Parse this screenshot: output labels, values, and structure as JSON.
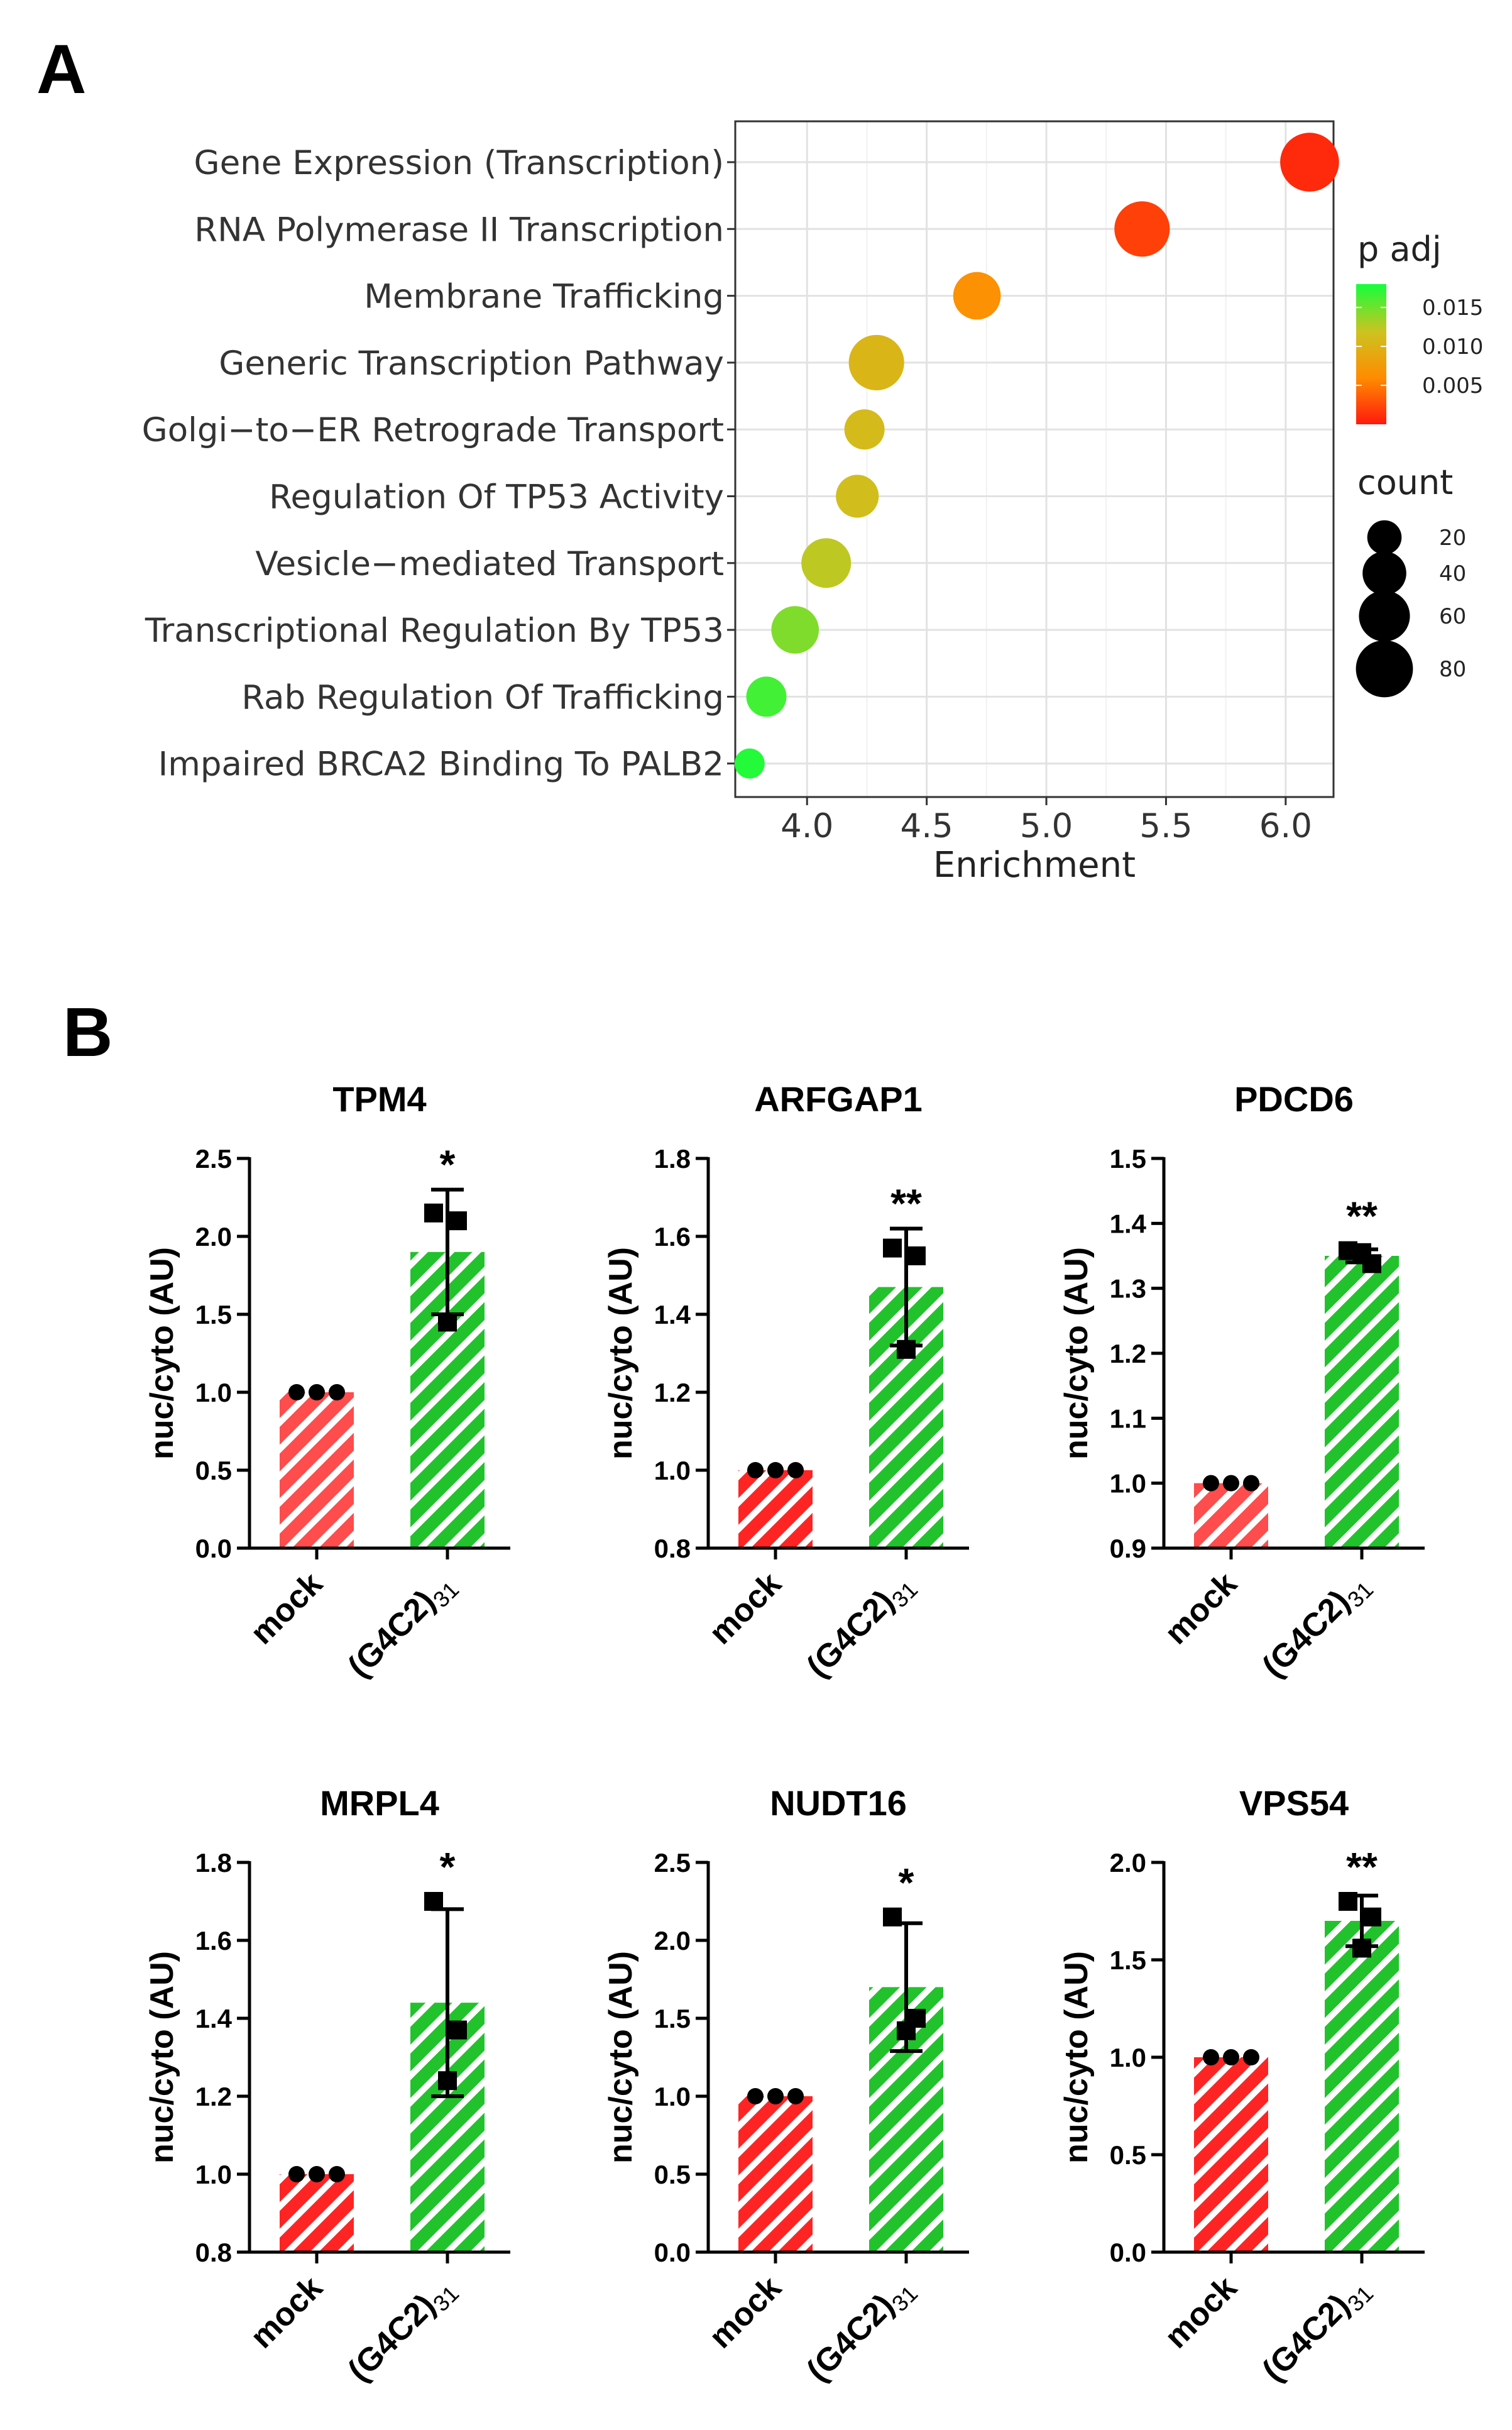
{
  "panel_a_label": "A",
  "panel_b_label": "B",
  "chart_data": [
    {
      "type": "scatter",
      "chart": "dotplot",
      "xlabel": "Enrichment",
      "xlim": [
        3.7,
        6.2
      ],
      "xticks": [
        4.0,
        4.5,
        5.0,
        5.5,
        6.0
      ],
      "xtick_labels": [
        "4.0",
        "4.5",
        "5.0",
        "5.5",
        "6.0"
      ],
      "grid": true,
      "terms": [
        "Gene Expression (Transcription)",
        "RNA Polymerase II Transcription",
        "Membrane Trafficking",
        "Generic Transcription Pathway",
        "Golgi−to−ER Retrograde Transport",
        "Regulation Of TP53 Activity",
        "Vesicle−mediated Transport",
        "Transcriptional Regulation By TP53",
        "Rab Regulation Of Trafficking",
        "Impaired BRCA2 Binding To PALB2"
      ],
      "enrichment": [
        6.1,
        5.4,
        4.71,
        4.29,
        4.24,
        4.21,
        4.08,
        3.95,
        3.83,
        3.76
      ],
      "p_adj": [
        0.0008,
        0.002,
        0.0065,
        0.0105,
        0.011,
        0.0115,
        0.0125,
        0.0145,
        0.0165,
        0.0175
      ],
      "count": [
        70,
        60,
        40,
        60,
        25,
        30,
        45,
        40,
        25,
        10
      ],
      "color_legend": {
        "title": "p adj",
        "ticks": [
          0.015,
          0.01,
          0.005
        ],
        "tick_labels": [
          "0.015",
          "0.010",
          "0.005"
        ],
        "range": [
          0.0,
          0.018
        ],
        "colors": [
          "#ff1a0d",
          "#ff8c00",
          "#cdc320",
          "#14ff3c"
        ]
      },
      "size_legend": {
        "title": "count",
        "values": [
          20,
          40,
          60,
          80
        ],
        "labels": [
          "20",
          "40",
          "60",
          "80"
        ]
      }
    },
    {
      "type": "bar",
      "title": "TPM4",
      "ylabel": "nuc/cyto (AU)",
      "categories": [
        "mock",
        "(G4C2)31"
      ],
      "values": [
        1.0,
        1.9
      ],
      "error": [
        0,
        0.4
      ],
      "points": [
        [
          1.0,
          1.0,
          1.0
        ],
        [
          2.15,
          2.1,
          1.45
        ]
      ],
      "significance": "*",
      "ylim": [
        0.0,
        2.5
      ],
      "yticks": [
        0.0,
        0.5,
        1.0,
        1.5,
        2.0,
        2.5
      ],
      "ytick_labels": [
        "0.0",
        "0.5",
        "1.0",
        "1.5",
        "2.0",
        "2.5"
      ],
      "colors": [
        "#ff4c4c",
        "#22c22c"
      ]
    },
    {
      "type": "bar",
      "title": "ARFGAP1",
      "ylabel": "nuc/cyto (AU)",
      "categories": [
        "mock",
        "(G4C2)31"
      ],
      "values": [
        1.0,
        1.47
      ],
      "error": [
        0,
        0.15
      ],
      "points": [
        [
          1.0,
          1.0,
          1.0
        ],
        [
          1.57,
          1.55,
          1.31
        ]
      ],
      "significance": "**",
      "ylim": [
        0.8,
        1.8
      ],
      "yticks": [
        0.8,
        1.0,
        1.2,
        1.4,
        1.6,
        1.8
      ],
      "ytick_labels": [
        "0.8",
        "1.0",
        "1.2",
        "1.4",
        "1.6",
        "1.8"
      ],
      "colors": [
        "#ff2424",
        "#22c22c"
      ]
    },
    {
      "type": "bar",
      "title": "PDCD6",
      "ylabel": "nuc/cyto (AU)",
      "categories": [
        "mock",
        "(G4C2)31"
      ],
      "values": [
        1.0,
        1.35
      ],
      "error": [
        0,
        0.01
      ],
      "points": [
        [
          1.0,
          1.0,
          1.0
        ],
        [
          1.358,
          1.338,
          1.355
        ]
      ],
      "significance": "**",
      "ylim": [
        0.9,
        1.5
      ],
      "yticks": [
        0.9,
        1.0,
        1.1,
        1.2,
        1.3,
        1.4,
        1.5
      ],
      "ytick_labels": [
        "0.9",
        "1.0",
        "1.1",
        "1.2",
        "1.3",
        "1.4",
        "1.5"
      ],
      "colors": [
        "#ff4c4c",
        "#22c22c"
      ]
    },
    {
      "type": "bar",
      "title": "MRPL4",
      "ylabel": "nuc/cyto (AU)",
      "categories": [
        "mock",
        "(G4C2)31"
      ],
      "values": [
        1.0,
        1.44
      ],
      "error": [
        0,
        0.24
      ],
      "points": [
        [
          1.0,
          1.0,
          1.0
        ],
        [
          1.7,
          1.37,
          1.24
        ]
      ],
      "significance": "*",
      "ylim": [
        0.8,
        1.8
      ],
      "yticks": [
        0.8,
        1.0,
        1.2,
        1.4,
        1.6,
        1.8
      ],
      "ytick_labels": [
        "0.8",
        "1.0",
        "1.2",
        "1.4",
        "1.6",
        "1.8"
      ],
      "colors": [
        "#ff2424",
        "#22c22c"
      ]
    },
    {
      "type": "bar",
      "title": "NUDT16",
      "ylabel": "nuc/cyto (AU)",
      "categories": [
        "mock",
        "(G4C2)31"
      ],
      "values": [
        1.0,
        1.7
      ],
      "error": [
        0,
        0.41
      ],
      "points": [
        [
          1.0,
          1.0,
          1.0
        ],
        [
          2.15,
          1.5,
          1.42
        ]
      ],
      "significance": "*",
      "ylim": [
        0.0,
        2.5
      ],
      "yticks": [
        0.0,
        0.5,
        1.0,
        1.5,
        2.0,
        2.5
      ],
      "ytick_labels": [
        "0.0",
        "0.5",
        "1.0",
        "1.5",
        "2.0",
        "2.5"
      ],
      "colors": [
        "#ff2424",
        "#22c22c"
      ]
    },
    {
      "type": "bar",
      "title": "VPS54",
      "ylabel": "nuc/cyto (AU)",
      "categories": [
        "mock",
        "(G4C2)31"
      ],
      "values": [
        1.0,
        1.7
      ],
      "error": [
        0,
        0.13
      ],
      "points": [
        [
          1.0,
          1.0,
          1.0
        ],
        [
          1.8,
          1.72,
          1.56
        ]
      ],
      "significance": "**",
      "ylim": [
        0.0,
        2.0
      ],
      "yticks": [
        0.0,
        0.5,
        1.0,
        1.5,
        2.0
      ],
      "ytick_labels": [
        "0.0",
        "0.5",
        "1.0",
        "1.5",
        "2.0"
      ],
      "colors": [
        "#ff2424",
        "#22c22c"
      ]
    }
  ]
}
